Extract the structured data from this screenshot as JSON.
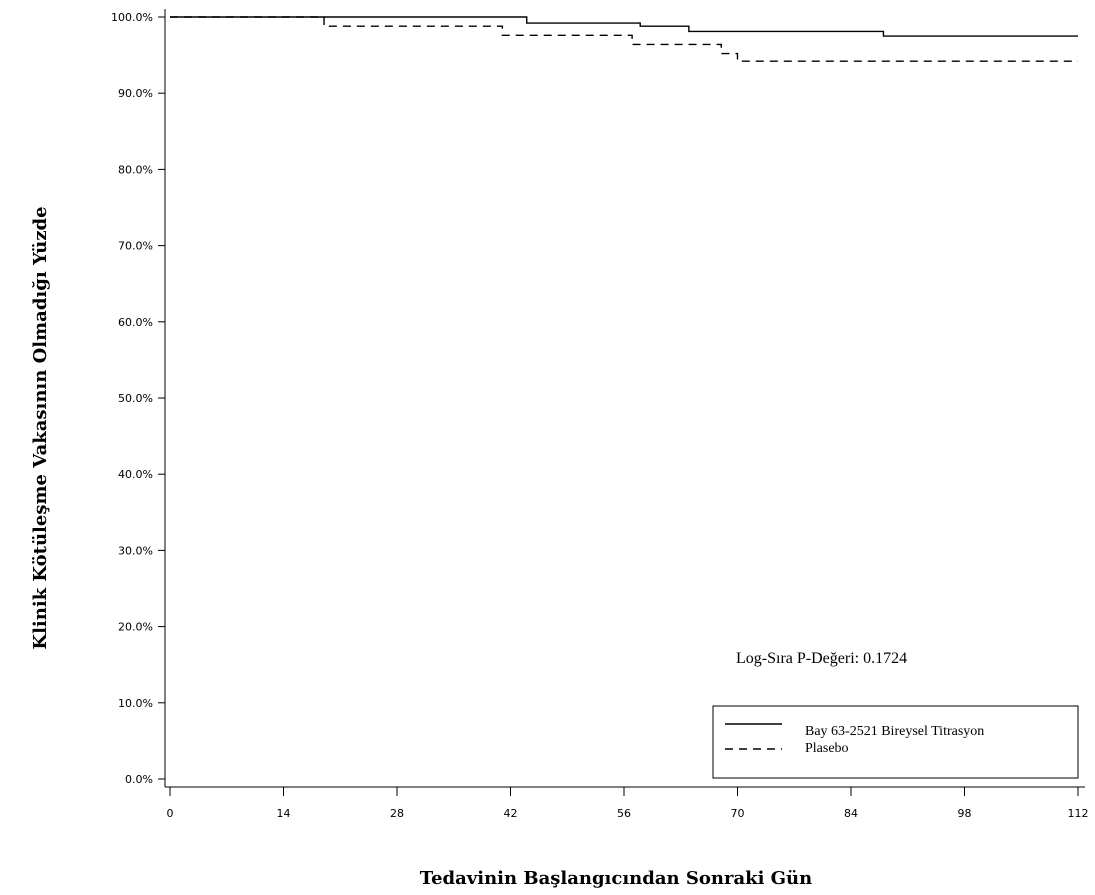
{
  "chart_data": {
    "type": "line",
    "subtype": "step",
    "xlabel": "Tedavinin Başlangıcından Sonraki Gün",
    "ylabel": "Klinik Kötüleşme Vakasının Olmadığı Yüzde",
    "xlim": [
      0,
      112
    ],
    "ylim": [
      0,
      100
    ],
    "x_ticks": [
      "0",
      "14",
      "28",
      "42",
      "56",
      "70",
      "84",
      "98",
      "112"
    ],
    "y_ticks": [
      "0.0%",
      "10.0%",
      "20.0%",
      "30.0%",
      "40.0%",
      "50.0%",
      "60.0%",
      "70.0%",
      "80.0%",
      "90.0%",
      "100.0%"
    ],
    "grid": false,
    "annotation": "Log-Sıra P-Değeri: 0.1724",
    "legend_position": "bottom-right",
    "series": [
      {
        "name": "Bay 63-2521 Bireysel Titrasyon",
        "line_style": "solid",
        "color": "#000000",
        "x": [
          0,
          44,
          58,
          64,
          88,
          112
        ],
        "y": [
          100.0,
          99.2,
          98.8,
          98.1,
          97.5,
          97.5
        ]
      },
      {
        "name": "Plasebo",
        "line_style": "dashed",
        "color": "#000000",
        "x": [
          0,
          19,
          41,
          57,
          68,
          70,
          112
        ],
        "y": [
          100.0,
          98.8,
          97.6,
          96.4,
          95.2,
          94.2,
          94.2
        ]
      }
    ]
  }
}
